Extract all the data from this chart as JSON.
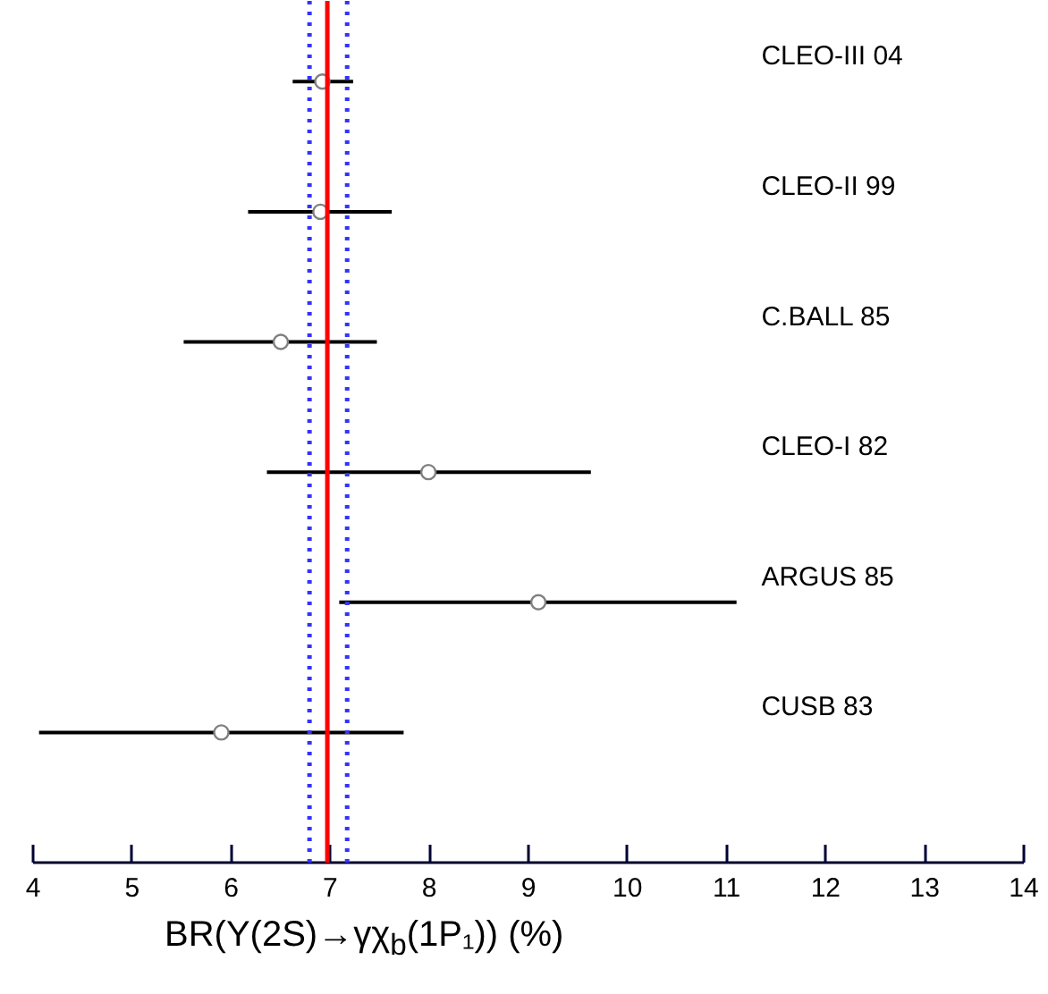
{
  "chart_data": {
    "type": "scatter",
    "orientation": "horizontal",
    "categories": [
      "CLEO-III 04",
      "CLEO-II 99",
      "C.BALL 85",
      "CLEO-I 82",
      "ARGUS 85",
      "CUSB 83"
    ],
    "values": [
      6.92,
      6.9,
      6.5,
      7.99,
      9.1,
      5.9
    ],
    "errors": [
      [
        6.62,
        7.23
      ],
      [
        6.17,
        7.62
      ],
      [
        5.52,
        7.47
      ],
      [
        6.36,
        9.63
      ],
      [
        7.09,
        11.1
      ],
      [
        4.06,
        7.74
      ]
    ],
    "marker": "circle",
    "xlabel": "BR(Υ(2S)→γχ$_{b}$(1P₁)) (%)",
    "xlim": [
      4,
      14
    ],
    "xticks": [
      4,
      5,
      6,
      7,
      8,
      9,
      10,
      11,
      12,
      13,
      14
    ],
    "ref_lines": [
      {
        "axis": "x",
        "value": 6.97,
        "color": "#ff0000",
        "line_style": "solid"
      },
      {
        "axis": "x",
        "value": 6.79,
        "color": "#3333ff",
        "line_style": "dotted"
      },
      {
        "axis": "x",
        "value": 7.17,
        "color": "#3333ff",
        "line_style": "dotted"
      }
    ],
    "grid": false
  }
}
